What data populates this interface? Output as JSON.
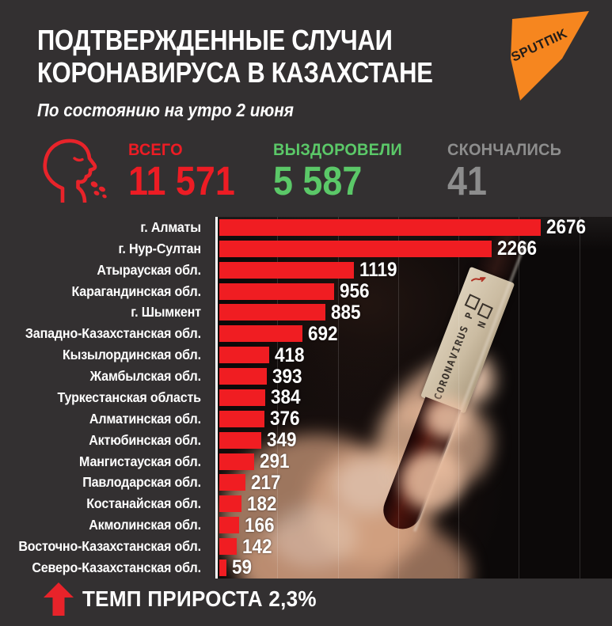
{
  "header": {
    "title_line1": "ПОДТВЕРЖДЕННЫЕ СЛУЧАИ",
    "title_line2": "КОРОНАВИРУСА В КАЗАХСТАНЕ",
    "subtitle": "По состоянию на утро 2 июня",
    "logo_text": "SPUTПIK",
    "logo_color": "#f6861f"
  },
  "stats": {
    "total": {
      "label": "ВСЕГО",
      "value": "11 571",
      "color": "#ed1c24"
    },
    "recovered": {
      "label": "ВЫЗДОРОВЕЛИ",
      "value": "5 587",
      "color": "#5bc868"
    },
    "died": {
      "label": "СКОНЧАЛИСЬ",
      "value": "41",
      "color": "#8d8d8d"
    },
    "icon": "coughing-person-icon"
  },
  "chart_data": {
    "type": "bar",
    "orientation": "horizontal",
    "title": "",
    "categories": [
      "г. Алматы",
      "г. Нур-Султан",
      "Атырауская обл.",
      "Карагандинская обл.",
      "г. Шымкент",
      "Западно-Казахстанская обл.",
      "Кызылординская обл.",
      "Жамбылская обл.",
      "Туркестанская область",
      "Алматинская обл.",
      "Актюбинская обл.",
      "Мангистауская обл.",
      "Павлодарская обл.",
      "Костанайская обл.",
      "Акмолинская обл.",
      "Восточно-Казахстанская обл.",
      "Северо-Казахстанская обл."
    ],
    "values": [
      2676,
      2266,
      1119,
      956,
      885,
      692,
      418,
      393,
      384,
      376,
      349,
      291,
      217,
      182,
      166,
      142,
      59
    ],
    "xlim": [
      0,
      3270
    ],
    "gridline_interval": 500,
    "grid": true,
    "legend": false,
    "value_labels": true,
    "bar_color": "#f01d22"
  },
  "photo": {
    "description": "gloved hand holding a blood test tube",
    "tube_label_line1": "CORONAVIRUS P",
    "tube_label_line2": "N"
  },
  "footer": {
    "growth_label": "ТЕМП ПРИРОСТА 2,3%"
  }
}
